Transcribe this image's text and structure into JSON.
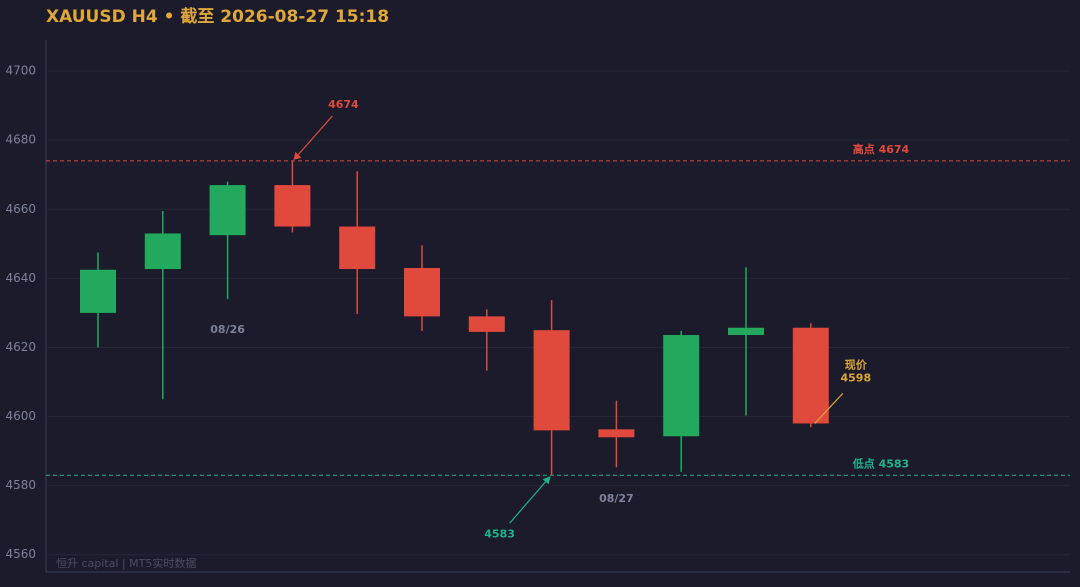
{
  "chart_data": {
    "type": "candlestick",
    "title": "XAUUSD H4 • 截至 2026-08-27 15:18",
    "watermark": "恒升 capital | MT5实时数据",
    "categories": [
      null,
      null,
      "08/26",
      null,
      null,
      null,
      null,
      null,
      "08/27",
      null,
      null,
      null
    ],
    "open": [
      4630,
      4642.7,
      4652.5,
      4667,
      4655,
      4643,
      4629,
      4625,
      4596.3,
      4594.3,
      4623.6,
      4625.7
    ],
    "high": [
      4647.5,
      4659.5,
      4668,
      4674,
      4671,
      4649.6,
      4631,
      4633.7,
      4604.6,
      4624.8,
      4643.2,
      4627
    ],
    "low": [
      4620,
      4605,
      4634,
      4653.3,
      4629.7,
      4624.8,
      4613.3,
      4583,
      4585.3,
      4584,
      4600.3,
      4596.9
    ],
    "close": [
      4642.5,
      4653,
      4667,
      4655,
      4642.7,
      4629,
      4624.5,
      4596,
      4594,
      4623.6,
      4625.7,
      4598
    ],
    "up_color": "#22a95d",
    "down_color": "#e04a3c",
    "ylim": [
      4555,
      4709
    ],
    "yticks": [
      4560,
      4580,
      4600,
      4620,
      4640,
      4660,
      4680,
      4700
    ],
    "grid": true,
    "reference_lines": [
      {
        "value": 4674,
        "label": "高点 4674",
        "color": "#e04a3c"
      },
      {
        "value": 4583,
        "label": "低点 4583",
        "color": "#1fb38c"
      }
    ],
    "high_annotation": "4674",
    "low_annotation": "4583",
    "current_price_label": "现价",
    "current_price_annotation": "4598",
    "current_price_color": "#d9a53a"
  }
}
